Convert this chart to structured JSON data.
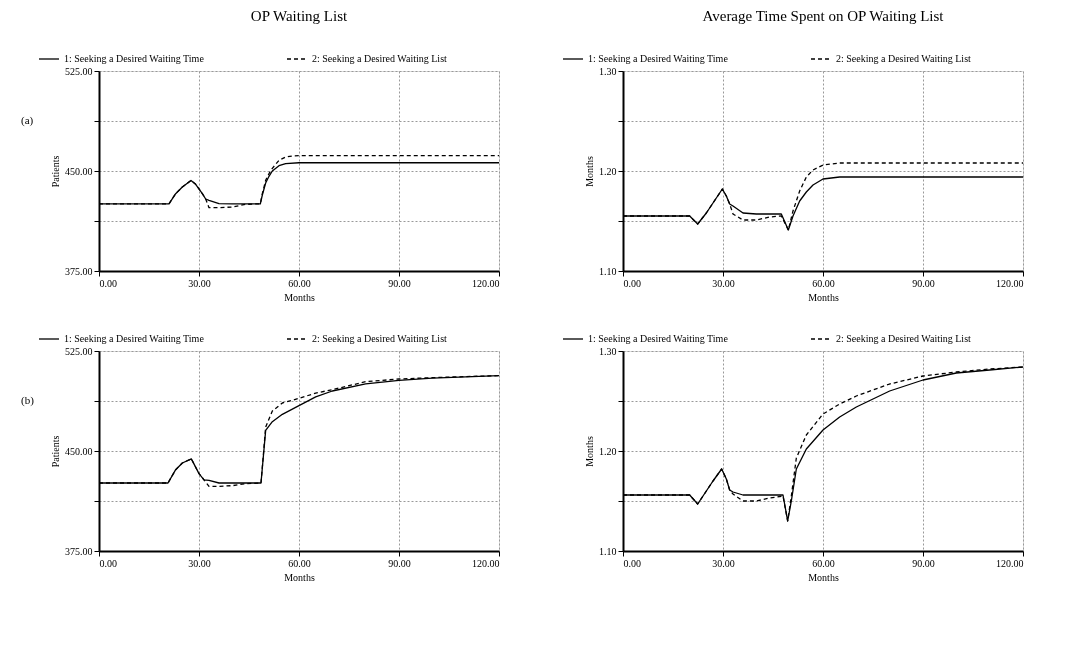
{
  "chart_data": [
    {
      "type": "line",
      "title": "OP Waiting List",
      "xlabel": "Months",
      "ylabel": "Patients",
      "annotations": [
        "(a)"
      ],
      "legend": "top",
      "grid": true,
      "xlim": [
        0,
        120
      ],
      "xticks": [
        {
          "value": 0,
          "label": "0.00"
        },
        {
          "value": 30,
          "label": "30.00"
        },
        {
          "value": 60,
          "label": "60.00"
        },
        {
          "value": 90,
          "label": "90.00"
        },
        {
          "value": 120,
          "label": "120.00"
        }
      ],
      "ylim": [
        375,
        525
      ],
      "yticks": [
        {
          "value": 375,
          "label": "375.00"
        },
        {
          "value": 412.5,
          "label": null
        },
        {
          "value": 450,
          "label": "450.00"
        },
        {
          "value": 487.5,
          "label": null
        },
        {
          "value": 525,
          "label": "525.00"
        }
      ],
      "series": [
        {
          "name": "1: Seeking a Desired Waiting Time",
          "color": "#000000",
          "line_style": "solid",
          "x": [
            0,
            10,
            20,
            21,
            23,
            25,
            27.6,
            29,
            31,
            32,
            33,
            36,
            40,
            48.4,
            49,
            50,
            51,
            52,
            54,
            56,
            60,
            120
          ],
          "values": [
            425.4,
            425.4,
            425.4,
            425.4,
            433,
            438,
            442.9,
            440,
            433,
            429,
            428,
            425.6,
            425.4,
            425.4,
            432,
            441,
            446,
            450,
            454,
            455.5,
            456.2,
            456.2
          ]
        },
        {
          "name": "2: Seeking a Desired Waiting List",
          "color": "#000000",
          "line_style": "dashed",
          "x": [
            0,
            10,
            20,
            21,
            23,
            25,
            27.6,
            29,
            31,
            32,
            33,
            36,
            40,
            44,
            48,
            48.4,
            49,
            50,
            51,
            52,
            54,
            56,
            58,
            60,
            120
          ],
          "values": [
            425.4,
            425.4,
            425.4,
            425.4,
            433,
            438,
            442.9,
            440,
            433,
            429,
            422.5,
            422.5,
            423,
            425,
            425.4,
            425.4,
            433,
            443,
            448,
            452,
            458,
            460.5,
            461.3,
            461.5,
            461.5
          ]
        }
      ]
    },
    {
      "type": "line",
      "title": "Average Time Spent on OP Waiting List",
      "xlabel": "Months",
      "ylabel": "Months",
      "legend": "top",
      "grid": true,
      "xlim": [
        0,
        120
      ],
      "xticks": [
        {
          "value": 0,
          "label": "0.00"
        },
        {
          "value": 30,
          "label": "30.00"
        },
        {
          "value": 60,
          "label": "60.00"
        },
        {
          "value": 90,
          "label": "90.00"
        },
        {
          "value": 120,
          "label": "120.00"
        }
      ],
      "ylim": [
        1.1,
        1.3
      ],
      "yticks": [
        {
          "value": 1.1,
          "label": "1.10"
        },
        {
          "value": 1.15,
          "label": null
        },
        {
          "value": 1.2,
          "label": "1.20"
        },
        {
          "value": 1.25,
          "label": null
        },
        {
          "value": 1.3,
          "label": "1.30"
        }
      ],
      "series": [
        {
          "name": "1: Seeking a Desired Waiting Time",
          "color": "#000000",
          "line_style": "solid",
          "x": [
            0,
            10,
            20,
            22.4,
            25,
            27,
            29.8,
            31,
            32,
            33,
            36,
            40,
            47.5,
            49.6,
            51,
            53,
            55,
            57,
            60,
            65,
            120
          ],
          "values": [
            1.155,
            1.155,
            1.155,
            1.147,
            1.158,
            1.168,
            1.182,
            1.175,
            1.167,
            1.165,
            1.158,
            1.157,
            1.157,
            1.141,
            1.155,
            1.17,
            1.179,
            1.186,
            1.192,
            1.194,
            1.194
          ]
        },
        {
          "name": "2: Seeking a Desired Waiting List",
          "color": "#000000",
          "line_style": "dashed",
          "x": [
            0,
            10,
            20,
            22.4,
            25,
            27,
            29.8,
            31,
            32,
            33,
            36,
            40,
            44,
            47.5,
            49.6,
            51,
            53,
            55,
            57,
            60,
            65,
            120
          ],
          "values": [
            1.155,
            1.155,
            1.155,
            1.147,
            1.158,
            1.168,
            1.182,
            1.175,
            1.167,
            1.157,
            1.151,
            1.151,
            1.154,
            1.155,
            1.141,
            1.16,
            1.18,
            1.194,
            1.201,
            1.206,
            1.208,
            1.208
          ]
        }
      ]
    },
    {
      "type": "line",
      "xlabel": "Months",
      "ylabel": "Patients",
      "annotations": [
        "(b)"
      ],
      "legend": "top",
      "grid": true,
      "xlim": [
        0,
        120
      ],
      "xticks": [
        {
          "value": 0,
          "label": "0.00"
        },
        {
          "value": 30,
          "label": "30.00"
        },
        {
          "value": 60,
          "label": "60.00"
        },
        {
          "value": 90,
          "label": "90.00"
        },
        {
          "value": 120,
          "label": "120.00"
        }
      ],
      "ylim": [
        375,
        525
      ],
      "yticks": [
        {
          "value": 375,
          "label": "375.00"
        },
        {
          "value": 412.5,
          "label": null
        },
        {
          "value": 450,
          "label": "450.00"
        },
        {
          "value": 487.5,
          "label": null
        },
        {
          "value": 525,
          "label": "525.00"
        }
      ],
      "series": [
        {
          "name": "1: Seeking a Desired Waiting Time",
          "color": "#000000",
          "line_style": "solid",
          "x": [
            0,
            10,
            20.7,
            23,
            25,
            27.7,
            30,
            31.5,
            33,
            36,
            40,
            48.6,
            50,
            52,
            55,
            60,
            65,
            70,
            80,
            90,
            100,
            110,
            120
          ],
          "values": [
            426,
            426,
            426,
            436,
            441,
            444.1,
            433,
            428.4,
            428,
            426,
            426,
            426,
            465.5,
            472,
            477.5,
            484,
            490.6,
            495,
            500.4,
            503,
            504.7,
            505.6,
            506.5
          ]
        },
        {
          "name": "2: Seeking a Desired Waiting List",
          "color": "#000000",
          "line_style": "dashed",
          "x": [
            0,
            10,
            20.7,
            23,
            25,
            27.7,
            30,
            31.5,
            33,
            36,
            40,
            44,
            48.6,
            50,
            52,
            55,
            60,
            65,
            70,
            80,
            90,
            100,
            110,
            120
          ],
          "values": [
            426,
            426,
            426,
            436,
            441,
            444.1,
            433,
            428.4,
            423.5,
            423.5,
            424,
            425.5,
            426,
            468,
            480,
            486,
            489.5,
            493.4,
            496,
            502,
            504,
            505,
            505.8,
            506.5
          ]
        }
      ]
    },
    {
      "type": "line",
      "xlabel": "Months",
      "ylabel": "Months",
      "legend": "top",
      "grid": true,
      "xlim": [
        0,
        120
      ],
      "xticks": [
        {
          "value": 0,
          "label": "0.00"
        },
        {
          "value": 30,
          "label": "30.00"
        },
        {
          "value": 60,
          "label": "60.00"
        },
        {
          "value": 90,
          "label": "90.00"
        },
        {
          "value": 120,
          "label": "120.00"
        }
      ],
      "ylim": [
        1.1,
        1.3
      ],
      "yticks": [
        {
          "value": 1.1,
          "label": "1.10"
        },
        {
          "value": 1.15,
          "label": null
        },
        {
          "value": 1.2,
          "label": "1.20"
        },
        {
          "value": 1.25,
          "label": null
        },
        {
          "value": 1.3,
          "label": "1.30"
        }
      ],
      "series": [
        {
          "name": "1: Seeking a Desired Waiting Time",
          "color": "#000000",
          "line_style": "solid",
          "x": [
            0,
            10,
            20,
            22.4,
            25,
            27,
            29.6,
            31,
            32,
            33,
            36,
            48,
            49.4,
            50.5,
            52,
            55,
            60,
            65,
            70,
            80,
            90,
            100,
            110,
            120
          ],
          "values": [
            1.156,
            1.156,
            1.156,
            1.147,
            1.16,
            1.17,
            1.182,
            1.172,
            1.161,
            1.159,
            1.156,
            1.156,
            1.13,
            1.15,
            1.182,
            1.202,
            1.221,
            1.234,
            1.244,
            1.26,
            1.271,
            1.278,
            1.281,
            1.284
          ]
        },
        {
          "name": "2: Seeking a Desired Waiting List",
          "color": "#000000",
          "line_style": "dashed",
          "x": [
            0,
            10,
            20,
            22.4,
            25,
            27,
            29.6,
            31,
            32,
            33,
            36,
            40,
            44,
            48,
            49.4,
            50.5,
            52,
            55,
            60,
            65,
            70,
            80,
            90,
            100,
            110,
            120
          ],
          "values": [
            1.156,
            1.156,
            1.156,
            1.147,
            1.16,
            1.17,
            1.182,
            1.172,
            1.161,
            1.157,
            1.15,
            1.15,
            1.153,
            1.155,
            1.13,
            1.155,
            1.193,
            1.216,
            1.237,
            1.247,
            1.255,
            1.267,
            1.275,
            1.279,
            1.282,
            1.284
          ]
        }
      ]
    }
  ]
}
